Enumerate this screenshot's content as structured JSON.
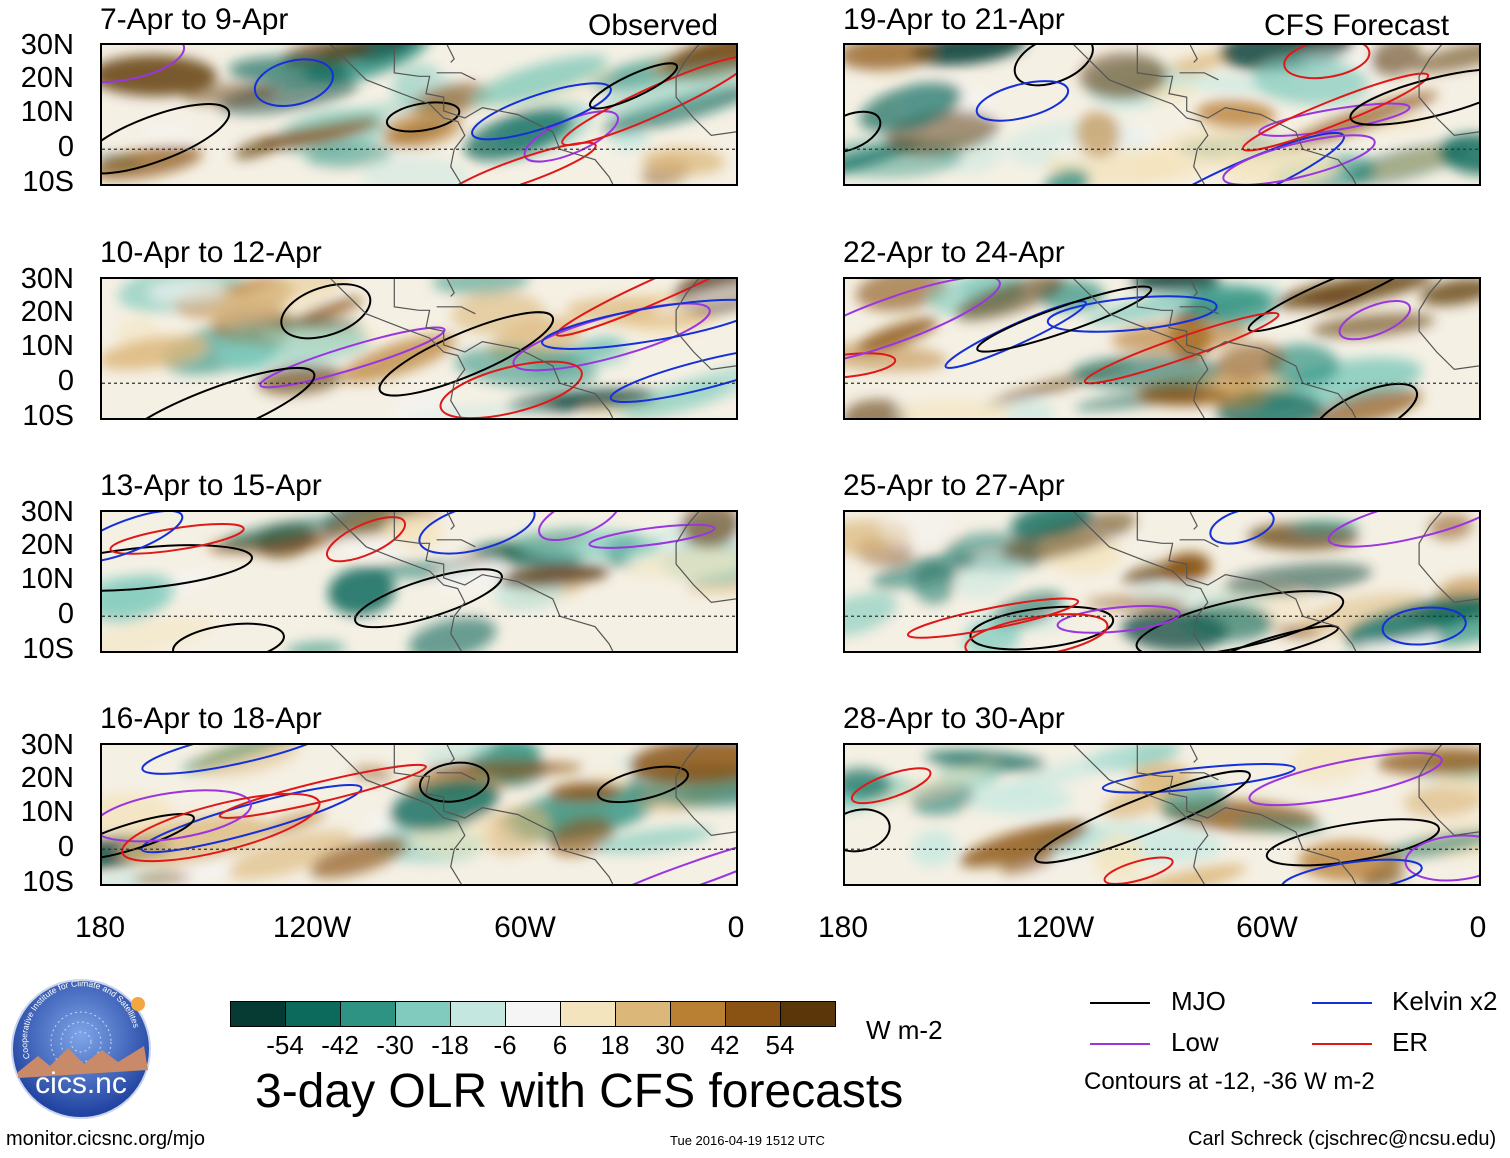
{
  "panels": [
    {
      "title": "7-Apr to 9-Apr",
      "tag": "Observed"
    },
    {
      "title": "19-Apr to 21-Apr",
      "tag": "CFS Forecast"
    },
    {
      "title": "10-Apr to 12-Apr",
      "tag": ""
    },
    {
      "title": "22-Apr to 24-Apr",
      "tag": ""
    },
    {
      "title": "13-Apr to 15-Apr",
      "tag": ""
    },
    {
      "title": "25-Apr to 27-Apr",
      "tag": ""
    },
    {
      "title": "16-Apr to 18-Apr",
      "tag": ""
    },
    {
      "title": "28-Apr to 30-Apr",
      "tag": ""
    }
  ],
  "lat_labels": [
    "30N",
    "20N",
    "10N",
    "0",
    "10S"
  ],
  "lon_labels": [
    "180",
    "120W",
    "60W",
    "0"
  ],
  "colorbar": {
    "labels": [
      "-54",
      "-42",
      "-30",
      "-18",
      "-6",
      "6",
      "18",
      "30",
      "42",
      "54"
    ],
    "colors": [
      "#053b32",
      "#0c6a5d",
      "#2e9382",
      "#80cbbd",
      "#c4e8e0",
      "#f5f5f5",
      "#f4e4bd",
      "#dcb77a",
      "#b97f33",
      "#8a5213",
      "#5a3608"
    ],
    "units": "W m-2"
  },
  "main_title": "3-day OLR with CFS forecasts",
  "legend": {
    "items": [
      {
        "label": "MJO",
        "color": "#000000"
      },
      {
        "label": "Kelvin x2",
        "color": "#1530d8"
      },
      {
        "label": "Low",
        "color": "#9b35e0"
      },
      {
        "label": "ER",
        "color": "#e01818"
      }
    ],
    "contours_note": "Contours at -12, -36 W m-2"
  },
  "logo_text": "cics.nc",
  "logo_ring_text": "Cooperative Institute for Climate and Satellites",
  "footer": {
    "website": "monitor.cicsnc.org/mjo",
    "timestamp": "Tue 2016-04-19 1512 UTC",
    "credit": "Carl Schreck (cjschrec@ncsu.edu)"
  }
}
